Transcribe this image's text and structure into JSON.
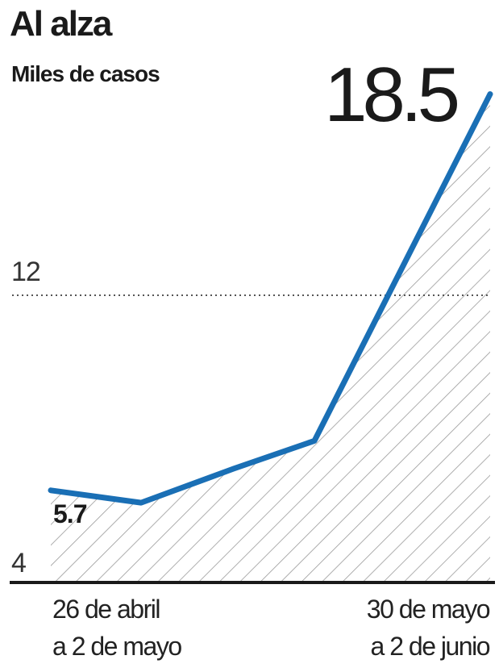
{
  "chart_data": {
    "type": "area",
    "title": "Al alza",
    "subtitle": "Miles de casos",
    "ylim": [
      4,
      20
    ],
    "yticks": [
      {
        "value": 4,
        "label": "4"
      },
      {
        "value": 12,
        "label": "12"
      }
    ],
    "series": [
      {
        "values": [
          5.7,
          5.3,
          6.4,
          7.3,
          18.5
        ]
      }
    ],
    "first_value_label": "5.7",
    "last_value_label": "18.5",
    "x_labels": {
      "first": [
        "26 de abril",
        "a 2 de mayo"
      ],
      "last": [
        "30 de mayo",
        "a 2 de junio"
      ]
    },
    "reference_line": 12,
    "colors": {
      "line": "#1a6fb5",
      "hatch": "#9a9a9a",
      "axis": "#1a1a1a",
      "text": "#1a1a1a"
    }
  }
}
